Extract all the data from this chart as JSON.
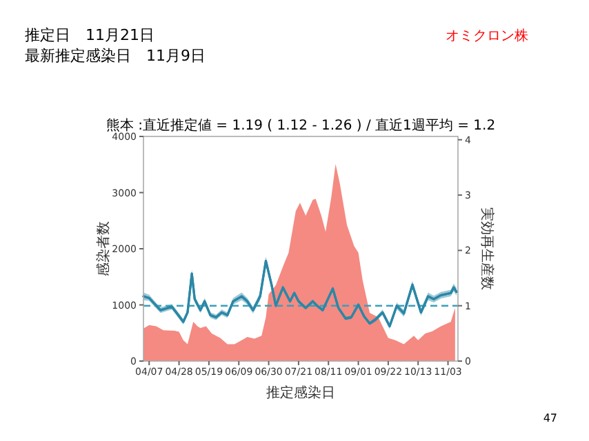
{
  "chart_data": {
    "type": "area",
    "title": "熊本 :直近推定値 = 1.19 ( 1.12 - 1.26 ) / 直近1週平均 = 1.2",
    "xlabel": "推定感染日",
    "ylabel": "感染者数",
    "y2label": "実効再生産数",
    "annotations": [
      "推定日　11月21日",
      "最新推定感染日　11月9日",
      "オミクロン株",
      "47"
    ],
    "xlim": [
      "--04-03",
      "--11-10"
    ],
    "xticks": [
      {
        "value": "--04-07",
        "label": "04/07"
      },
      {
        "value": "--04-28",
        "label": "04/28"
      },
      {
        "value": "--05-19",
        "label": "05/19"
      },
      {
        "value": "--06-09",
        "label": "06/09"
      },
      {
        "value": "--06-30",
        "label": "06/30"
      },
      {
        "value": "--07-21",
        "label": "07/21"
      },
      {
        "value": "--08-11",
        "label": "08/11"
      },
      {
        "value": "--09-01",
        "label": "09/01"
      },
      {
        "value": "--09-22",
        "label": "09/22"
      },
      {
        "value": "--10-13",
        "label": "10/13"
      },
      {
        "value": "--11-03",
        "label": "11/03"
      }
    ],
    "ylim": [
      0,
      4000
    ],
    "yticks": [
      0,
      1000,
      2000,
      3000,
      4000
    ],
    "y2lim": [
      0,
      4.06
    ],
    "y2ticks": [
      0,
      1,
      2,
      3,
      4
    ],
    "ref_lines": [
      {
        "axis": "y2",
        "value": 1,
        "color": "#3a9fbb",
        "line_style": "dashed"
      }
    ],
    "series": [
      {
        "color": "#f48a82",
        "x": [
          "--04-03",
          "--04-07",
          "--04-12",
          "--04-17",
          "--04-25",
          "--04-28",
          "--05-01",
          "--05-04",
          "--05-08",
          "--05-11",
          "--05-13",
          "--05-17",
          "--05-21",
          "--05-27",
          "--06-01",
          "--06-06",
          "--06-11",
          "--06-15",
          "--06-20",
          "--06-25",
          "--06-28",
          "--06-30",
          "--07-05",
          "--07-10",
          "--07-14",
          "--07-19",
          "--07-22",
          "--07-26",
          "--07-31",
          "--08-02",
          "--08-06",
          "--08-09",
          "--08-13",
          "--08-16",
          "--08-19",
          "--08-24",
          "--08-29",
          "--09-01",
          "--09-04",
          "--09-09",
          "--09-15",
          "--09-22",
          "--09-27",
          "--10-03",
          "--10-10",
          "--10-13",
          "--10-18",
          "--10-23",
          "--10-29",
          "--11-05",
          "--11-08"
        ],
        "values": [
          580,
          640,
          620,
          550,
          540,
          520,
          370,
          300,
          700,
          620,
          590,
          620,
          490,
          410,
          300,
          300,
          370,
          430,
          400,
          450,
          780,
          1190,
          1350,
          1680,
          1930,
          2670,
          2820,
          2590,
          2870,
          2890,
          2590,
          2300,
          2920,
          3510,
          3160,
          2420,
          2050,
          1930,
          1440,
          860,
          780,
          410,
          370,
          300,
          450,
          370,
          490,
          530,
          620,
          700,
          950
        ]
      },
      {
        "type": "line",
        "axis": "y2",
        "color": "#2b87a6",
        "x": [
          "--04-03",
          "--04-07",
          "--04-12",
          "--04-15",
          "--04-20",
          "--04-23",
          "--04-26",
          "--05-01",
          "--05-04",
          "--05-07",
          "--05-09",
          "--05-13",
          "--05-16",
          "--05-20",
          "--05-24",
          "--05-28",
          "--06-01",
          "--06-05",
          "--06-11",
          "--06-15",
          "--06-19",
          "--06-24",
          "--06-28",
          "--07-02",
          "--07-05",
          "--07-10",
          "--07-15",
          "--07-18",
          "--07-21",
          "--07-26",
          "--07-31",
          "--08-03",
          "--08-07",
          "--08-14",
          "--08-18",
          "--08-23",
          "--08-27",
          "--09-01",
          "--09-05",
          "--09-09",
          "--09-13",
          "--09-18",
          "--09-23",
          "--09-28",
          "--10-03",
          "--10-09",
          "--10-15",
          "--10-20",
          "--10-24",
          "--10-29",
          "--11-05",
          "--11-07",
          "--11-09"
        ],
        "values": [
          1.17,
          1.14,
          1.0,
          0.92,
          0.96,
          0.98,
          0.88,
          0.71,
          0.88,
          1.58,
          1.12,
          0.92,
          1.08,
          0.83,
          0.79,
          0.88,
          0.83,
          1.08,
          1.17,
          1.08,
          0.92,
          1.17,
          1.81,
          1.38,
          1.0,
          1.33,
          1.08,
          1.23,
          1.08,
          0.96,
          1.08,
          1.0,
          0.92,
          1.31,
          0.96,
          0.77,
          0.79,
          1.02,
          0.81,
          0.68,
          0.75,
          0.88,
          0.63,
          1.0,
          0.86,
          1.38,
          0.88,
          1.17,
          1.12,
          1.19,
          1.23,
          1.33,
          1.25
        ],
        "lower": [
          1.1,
          1.09,
          0.95,
          0.87,
          0.91,
          0.93,
          0.83,
          0.66,
          0.83,
          1.5,
          1.06,
          0.87,
          1.02,
          0.78,
          0.74,
          0.83,
          0.78,
          1.02,
          1.1,
          1.02,
          0.86,
          1.1,
          1.73,
          1.33,
          0.96,
          1.29,
          1.05,
          1.2,
          1.05,
          0.93,
          1.05,
          0.97,
          0.89,
          1.27,
          0.93,
          0.74,
          0.76,
          0.99,
          0.78,
          0.65,
          0.71,
          0.83,
          0.58,
          0.94,
          0.8,
          1.31,
          0.82,
          1.1,
          1.06,
          1.13,
          1.17,
          1.26,
          1.18
        ],
        "upper": [
          1.24,
          1.2,
          1.05,
          0.97,
          1.01,
          1.03,
          0.93,
          0.76,
          0.93,
          1.66,
          1.18,
          0.97,
          1.14,
          0.88,
          0.84,
          0.93,
          0.88,
          1.14,
          1.24,
          1.14,
          0.98,
          1.24,
          1.89,
          1.43,
          1.04,
          1.37,
          1.11,
          1.26,
          1.11,
          0.99,
          1.11,
          1.03,
          0.95,
          1.35,
          0.99,
          0.8,
          0.82,
          1.05,
          0.84,
          0.71,
          0.79,
          0.93,
          0.68,
          1.06,
          0.92,
          1.45,
          0.94,
          1.24,
          1.18,
          1.25,
          1.29,
          1.4,
          1.32
        ]
      }
    ]
  }
}
